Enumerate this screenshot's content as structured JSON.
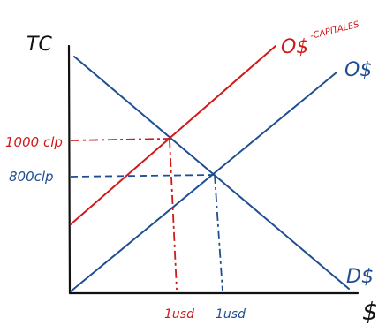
{
  "axes": {
    "y_label": "TC",
    "x_label": "$"
  },
  "curves": {
    "supply_shifted": {
      "label": "O$",
      "superscript": "-CAPITALES",
      "color": "#d01a1a"
    },
    "supply": {
      "label": "O$",
      "color": "#1f4e93"
    },
    "demand": {
      "label": "D$",
      "color": "#1f4e93"
    }
  },
  "equilibria": {
    "new": {
      "price_label": "1000 clp",
      "qty_label": "1usd",
      "color": "#d01a1a"
    },
    "original": {
      "price_label": "800clp",
      "qty_label": "1usd",
      "color": "#1f4e93"
    }
  },
  "colors": {
    "axis": "#111111",
    "blue": "#1f4e93",
    "red": "#d01a1a"
  }
}
